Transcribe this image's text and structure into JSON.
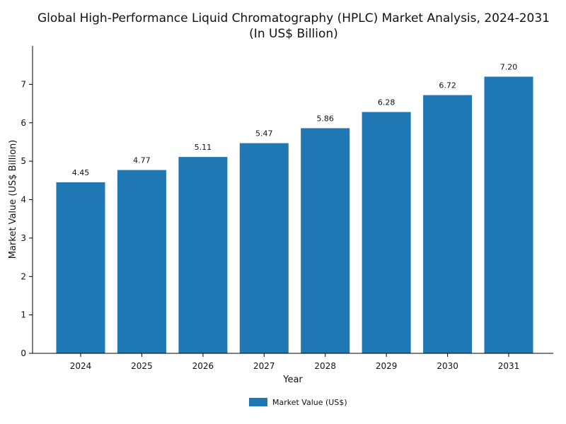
{
  "chart_data": {
    "type": "bar",
    "title": "Global High-Performance Liquid Chromatography (HPLC) Market Analysis, 2024-2031",
    "subtitle": "(In US$ Billion)",
    "xlabel": "Year",
    "ylabel": "Market Value (US$ Billion)",
    "categories": [
      "2024",
      "2025",
      "2026",
      "2027",
      "2028",
      "2029",
      "2030",
      "2031"
    ],
    "series": [
      {
        "name": "Market Value (US$)",
        "values": [
          4.45,
          4.77,
          5.11,
          5.47,
          5.86,
          6.28,
          6.72,
          7.2
        ],
        "labels": [
          "4.45",
          "4.77",
          "5.11",
          "5.47",
          "5.86",
          "6.28",
          "6.72",
          "7.20"
        ],
        "color": "#1f77b4"
      }
    ],
    "ylim": [
      0,
      8.0
    ],
    "yticks": [
      0,
      1,
      2,
      3,
      4,
      5,
      6,
      7
    ],
    "grid": false,
    "legend_position": "bottom-center"
  }
}
